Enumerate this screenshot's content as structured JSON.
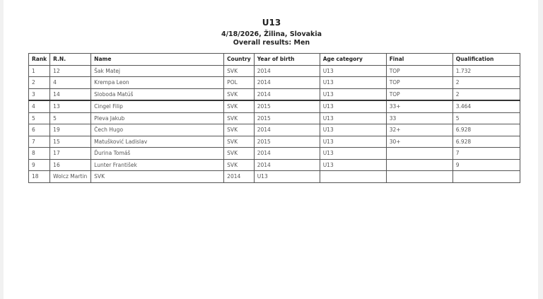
{
  "title": "U13",
  "subtitle": "4/18/2026, Žilina, Slovakia",
  "results_label": "Overall results: Men",
  "columns": [
    "Rank",
    "R.N.",
    "Name",
    "Country",
    "Year of birth",
    "Age category",
    "Final",
    "Qualification"
  ],
  "rows": [
    [
      "1",
      "12",
      "Šak Matej",
      "SVK",
      "2014",
      "U13",
      "TOP",
      "1.732"
    ],
    [
      "2",
      "4",
      "Krempa Leon",
      "POL",
      "2014",
      "U13",
      "TOP",
      "2"
    ],
    [
      "3",
      "14",
      "Sloboda Matúš",
      "SVK",
      "2014",
      "U13",
      "TOP",
      "2"
    ],
    [
      "4",
      "13",
      "Cingel Filip",
      "SVK",
      "2015",
      "U13",
      "33+",
      "3.464"
    ],
    [
      "5",
      "5",
      "Pleva Jakub",
      "SVK",
      "2015",
      "U13",
      "33",
      "5"
    ],
    [
      "6",
      "19",
      "Čech Hugo",
      "SVK",
      "2014",
      "U13",
      "32+",
      "6.928"
    ],
    [
      "7",
      "15",
      "Matušković Ladislav",
      "SVK",
      "2015",
      "U13",
      "30+",
      "6.928"
    ],
    [
      "8",
      "17",
      "Ďurina Tomáš",
      "SVK",
      "2014",
      "U13",
      "",
      "7"
    ],
    [
      "9",
      "16",
      "Lunter František",
      "SVK",
      "2014",
      "U13",
      "",
      "9"
    ],
    [
      "18",
      "Wolcz Martin",
      "SVK",
      "2014",
      "U13",
      "",
      "",
      ""
    ]
  ]
}
